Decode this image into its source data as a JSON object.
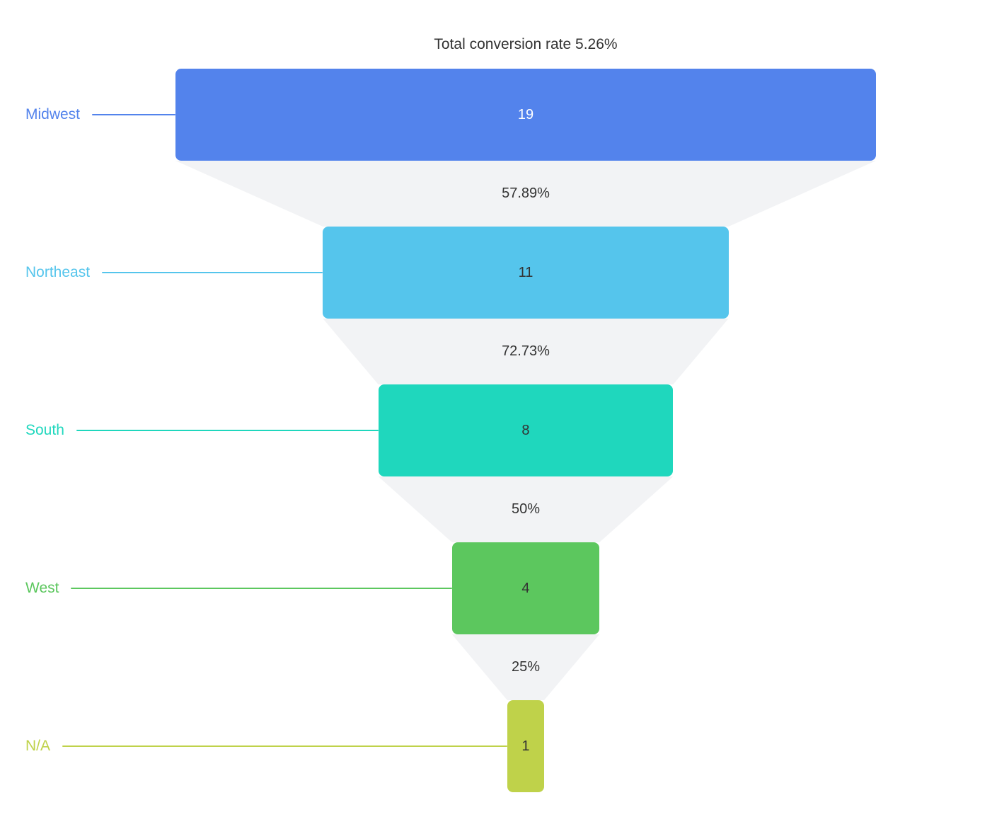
{
  "chart_data": {
    "type": "funnel",
    "title": "Total conversion rate 5.26%",
    "total_conversion_rate": "5.26%",
    "stages": [
      {
        "label": "Midwest",
        "value": 19,
        "color": "#5383EC",
        "value_text_color": "#ffffff"
      },
      {
        "label": "Northeast",
        "value": 11,
        "color": "#55C5EC",
        "value_text_color": "#333333"
      },
      {
        "label": "South",
        "value": 8,
        "color": "#1FD7BD",
        "value_text_color": "#333333"
      },
      {
        "label": "West",
        "value": 4,
        "color": "#5CC75E",
        "value_text_color": "#333333"
      },
      {
        "label": "N/A",
        "value": 1,
        "color": "#BFD24A",
        "value_text_color": "#333333"
      }
    ],
    "conversion_labels": [
      "57.89%",
      "72.73%",
      "50%",
      "25%"
    ],
    "layout": {
      "gap_color": "#F2F3F5",
      "background": "#FFFFFF",
      "title_color": "#333333",
      "conversion_label_color": "#333333",
      "labels_position": "left",
      "funnel_sorted": "descending"
    }
  }
}
